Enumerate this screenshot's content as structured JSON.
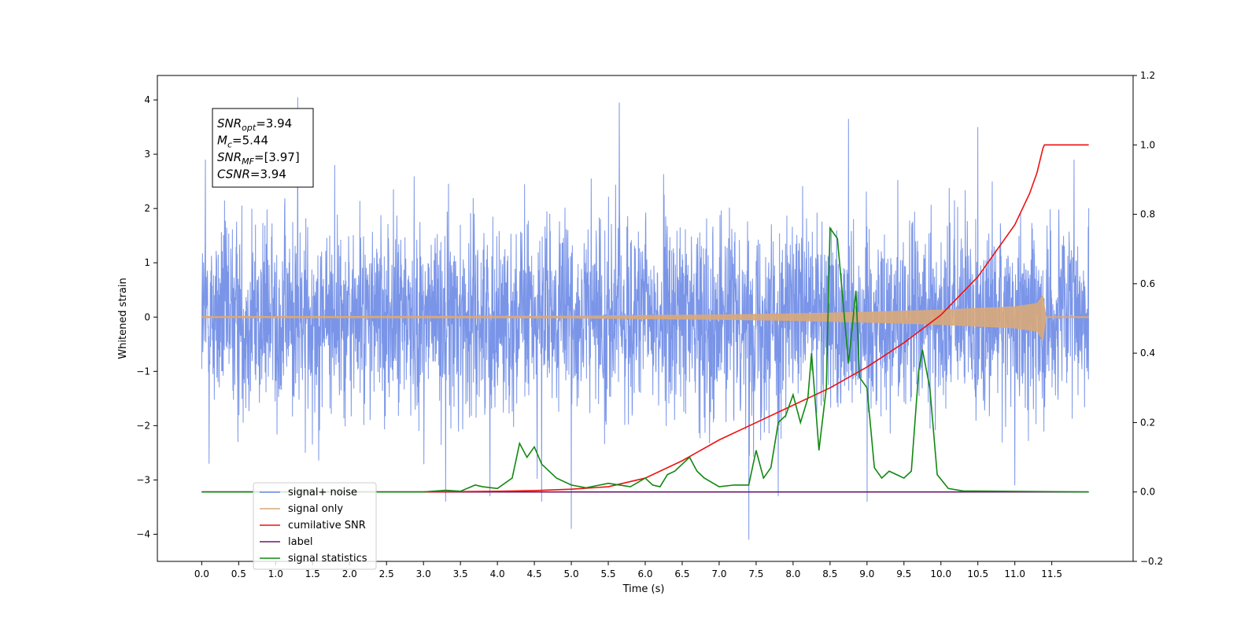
{
  "chart_data": {
    "type": "line",
    "xlabel": "Time (s)",
    "ylabel": "Whitened strain",
    "xlim": [
      -0.6,
      12.6
    ],
    "ylim": [
      -4.5,
      4.45
    ],
    "y2lim": [
      -0.2,
      1.2
    ],
    "grid": false,
    "legend_position": "lower-left",
    "x_ticks": [
      "0.0",
      "0.5",
      "1.0",
      "1.5",
      "2.0",
      "2.5",
      "3.0",
      "3.5",
      "4.0",
      "4.5",
      "5.0",
      "5.5",
      "6.0",
      "6.5",
      "7.0",
      "7.5",
      "8.0",
      "8.5",
      "9.0",
      "9.5",
      "10.0",
      "10.5",
      "11.0",
      "11.5"
    ],
    "y_ticks": [
      "4",
      "3",
      "2",
      "1",
      "0",
      "−1",
      "−2",
      "−3",
      "−4"
    ],
    "y2_ticks": [
      "1.2",
      "1.0",
      "0.8",
      "0.6",
      "0.4",
      "0.2",
      "0.0",
      "−0.2"
    ],
    "annotations": [
      {
        "base": "SNR",
        "sub": "opt",
        "rest": "=3.94"
      },
      {
        "base": "M",
        "sub": "c",
        "rest": "=5.44"
      },
      {
        "base": "SNR",
        "sub": "MF",
        "rest": "=[3.97]"
      },
      {
        "base": "CSNR",
        "sub": "",
        "rest": "=3.94"
      }
    ],
    "series": [
      {
        "name": "signal+ noise",
        "axis": "left",
        "color": "#6b8ae6",
        "style": "noise",
        "envelope_x": [
          0,
          12
        ],
        "approx_std": 1.0,
        "spikes": [
          [
            0.05,
            2.9
          ],
          [
            0.1,
            -2.7
          ],
          [
            1.3,
            4.05
          ],
          [
            1.8,
            2.8
          ],
          [
            1.4,
            -2.5
          ],
          [
            3.3,
            -3.4
          ],
          [
            3.9,
            -3.3
          ],
          [
            4.6,
            -3.4
          ],
          [
            5.0,
            -3.9
          ],
          [
            5.65,
            3.95
          ],
          [
            7.4,
            -4.1
          ],
          [
            7.8,
            -3.3
          ],
          [
            8.75,
            3.65
          ],
          [
            9.0,
            -3.4
          ],
          [
            10.5,
            3.5
          ],
          [
            11.0,
            -3.1
          ],
          [
            11.8,
            2.9
          ]
        ]
      },
      {
        "name": "signal only",
        "axis": "left",
        "color": "#d9a87a",
        "style": "chirp",
        "x": [
          0,
          5,
          6,
          7,
          8,
          9,
          10,
          11,
          11.3,
          11.38,
          11.42,
          12
        ],
        "amplitude": [
          0.01,
          0.015,
          0.03,
          0.04,
          0.06,
          0.09,
          0.13,
          0.19,
          0.25,
          0.4,
          0.0,
          0.0
        ]
      },
      {
        "name": "cumilative SNR",
        "axis": "right",
        "color": "#ee1111",
        "x": [
          0,
          3.0,
          4.0,
          4.5,
          5.0,
          5.5,
          6.0,
          6.5,
          7.0,
          7.5,
          8.0,
          8.5,
          9.0,
          9.5,
          10.0,
          10.5,
          11.0,
          11.2,
          11.3,
          11.38,
          11.4,
          12.0
        ],
        "y": [
          0,
          0,
          0.002,
          0.004,
          0.008,
          0.015,
          0.04,
          0.09,
          0.15,
          0.2,
          0.25,
          0.3,
          0.36,
          0.43,
          0.51,
          0.62,
          0.77,
          0.86,
          0.92,
          0.99,
          1.0,
          1.0
        ]
      },
      {
        "name": "label",
        "axis": "right",
        "color": "#6a1a6a",
        "x": [
          0,
          12
        ],
        "y": [
          0,
          0
        ]
      },
      {
        "name": "signal statistics",
        "axis": "right",
        "color": "#118811",
        "x": [
          0,
          3.0,
          3.3,
          3.5,
          3.7,
          3.8,
          4.0,
          4.2,
          4.3,
          4.4,
          4.5,
          4.6,
          4.8,
          5.0,
          5.2,
          5.5,
          5.8,
          6.0,
          6.1,
          6.2,
          6.3,
          6.4,
          6.6,
          6.7,
          6.8,
          7.0,
          7.2,
          7.4,
          7.5,
          7.6,
          7.7,
          7.8,
          7.9,
          8.0,
          8.1,
          8.2,
          8.25,
          8.35,
          8.45,
          8.5,
          8.6,
          8.75,
          8.85,
          8.9,
          9.0,
          9.1,
          9.2,
          9.3,
          9.5,
          9.6,
          9.7,
          9.75,
          9.85,
          9.95,
          10.1,
          10.3,
          12.0
        ],
        "y": [
          0,
          0,
          0.005,
          0.002,
          0.02,
          0.015,
          0.01,
          0.04,
          0.14,
          0.1,
          0.13,
          0.08,
          0.04,
          0.02,
          0.012,
          0.025,
          0.015,
          0.04,
          0.02,
          0.015,
          0.05,
          0.06,
          0.1,
          0.06,
          0.04,
          0.015,
          0.02,
          0.02,
          0.12,
          0.04,
          0.07,
          0.2,
          0.22,
          0.28,
          0.2,
          0.27,
          0.4,
          0.12,
          0.3,
          0.76,
          0.73,
          0.37,
          0.58,
          0.33,
          0.3,
          0.07,
          0.04,
          0.06,
          0.04,
          0.06,
          0.35,
          0.41,
          0.3,
          0.05,
          0.01,
          0.003,
          0
        ]
      }
    ]
  }
}
